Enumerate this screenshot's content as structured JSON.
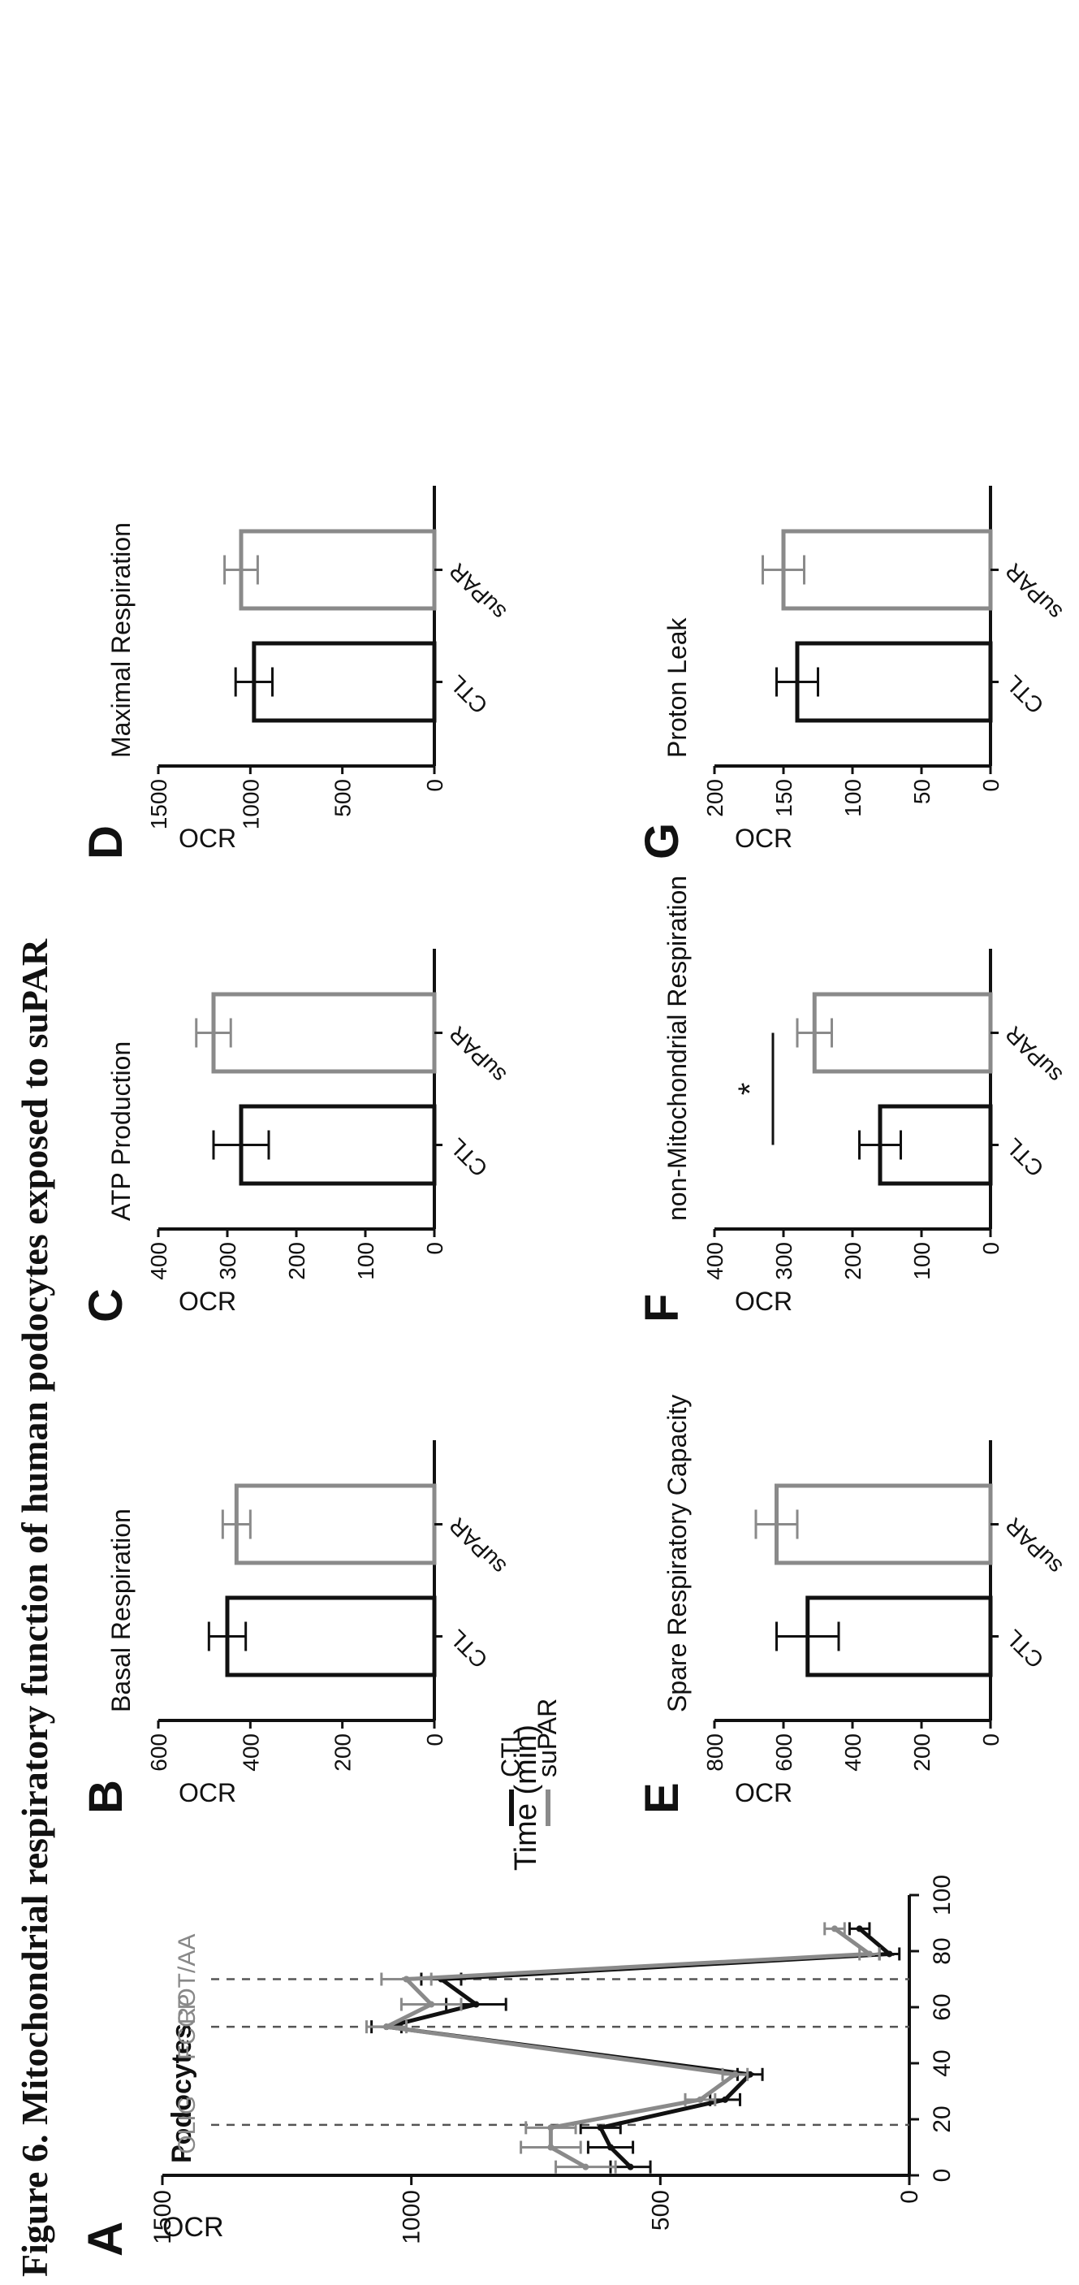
{
  "figure_title": "Figure 6. Mitochondrial respiratory function of human podocytes exposed to suPAR",
  "colors": {
    "CTL": "#111111",
    "suPAR": "#8a8a8a"
  },
  "chart_data": [
    {
      "panel": "A",
      "type": "line",
      "title": "Podocytes",
      "xlabel": "Time (min)",
      "ylabel": "OCR",
      "xlim": [
        0,
        100
      ],
      "ylim": [
        0,
        1500
      ],
      "xticks": [
        "0",
        "20",
        "40",
        "60",
        "80",
        "100"
      ],
      "yticks": [
        "0",
        "500",
        "1000",
        "1500"
      ],
      "injections": [
        {
          "label": "OLIG",
          "time": 18
        },
        {
          "label": "FCCP",
          "time": 53
        },
        {
          "label": "ROT/AA",
          "time": 70
        }
      ],
      "legend": [
        "CTL",
        "suPAR"
      ],
      "x": [
        3,
        10,
        17,
        27,
        36,
        53,
        61,
        70,
        79,
        88
      ],
      "series": [
        {
          "name": "CTL",
          "values": [
            560,
            600,
            620,
            370,
            320,
            1050,
            870,
            940,
            40,
            100
          ],
          "errors": [
            40,
            45,
            40,
            30,
            25,
            30,
            60,
            40,
            20,
            20
          ]
        },
        {
          "name": "suPAR",
          "values": [
            650,
            720,
            720,
            420,
            350,
            1050,
            960,
            1010,
            80,
            150
          ],
          "errors": [
            60,
            60,
            50,
            30,
            25,
            40,
            60,
            50,
            20,
            20
          ]
        }
      ]
    },
    {
      "panel": "B",
      "type": "bar",
      "title": "Basal Respiration",
      "ylabel": "OCR",
      "ylim": [
        0,
        600
      ],
      "yticks": [
        "0",
        "200",
        "400",
        "600"
      ],
      "categories": [
        "CTL",
        "suPAR"
      ],
      "values": [
        450,
        430
      ],
      "errors": [
        40,
        30
      ]
    },
    {
      "panel": "C",
      "type": "bar",
      "title": "ATP Production",
      "ylabel": "OCR",
      "ylim": [
        0,
        400
      ],
      "yticks": [
        "0",
        "100",
        "200",
        "300",
        "400"
      ],
      "categories": [
        "CTL",
        "suPAR"
      ],
      "values": [
        280,
        320
      ],
      "errors": [
        40,
        25
      ]
    },
    {
      "panel": "D",
      "type": "bar",
      "title": "Maximal Respiration",
      "ylabel": "OCR",
      "ylim": [
        0,
        1500
      ],
      "yticks": [
        "0",
        "500",
        "1000",
        "1500"
      ],
      "categories": [
        "CTL",
        "suPAR"
      ],
      "values": [
        980,
        1050
      ],
      "errors": [
        100,
        90
      ]
    },
    {
      "panel": "E",
      "type": "bar",
      "title": "Spare Respiratory Capacity",
      "ylabel": "OCR",
      "ylim": [
        0,
        800
      ],
      "yticks": [
        "0",
        "200",
        "400",
        "600",
        "800"
      ],
      "categories": [
        "CTL",
        "suPAR"
      ],
      "values": [
        530,
        620
      ],
      "errors": [
        90,
        60
      ]
    },
    {
      "panel": "F",
      "type": "bar",
      "title": "non-Mitochondrial Respiration",
      "ylabel": "OCR",
      "ylim": [
        0,
        400
      ],
      "yticks": [
        "0",
        "100",
        "200",
        "300",
        "400"
      ],
      "categories": [
        "CTL",
        "suPAR"
      ],
      "values": [
        160,
        255
      ],
      "errors": [
        30,
        25
      ],
      "annotation": "*"
    },
    {
      "panel": "G",
      "type": "bar",
      "title": "Proton Leak",
      "ylabel": "OCR",
      "ylim": [
        0,
        200
      ],
      "yticks": [
        "0",
        "50",
        "100",
        "150",
        "200"
      ],
      "categories": [
        "CTL",
        "suPAR"
      ],
      "values": [
        140,
        150
      ],
      "errors": [
        15,
        15
      ]
    }
  ]
}
